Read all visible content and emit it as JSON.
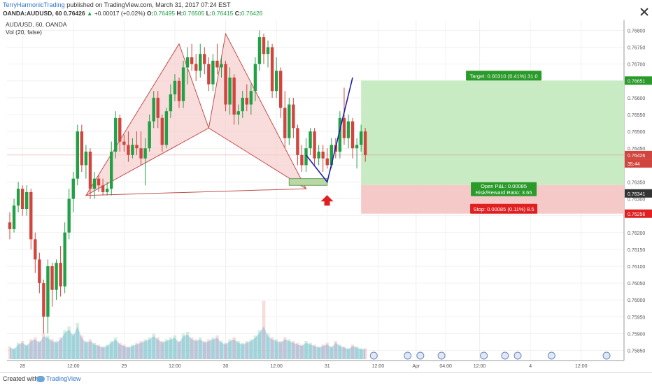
{
  "header": {
    "author": "TerryHarmonicTrading",
    "published": " published on TradingView.com, March 31, 2017 07:24 EST",
    "symbol": "OANDA:AUDUSD, 60",
    "last": "0.76426",
    "change": "+0.00017 (+0.02%)",
    "o_label": "O:",
    "o": "0.76495",
    "h_label": "H:",
    "h": "0.76505",
    "l_label": "L:",
    "l": "0.76415",
    "c_label": "C:",
    "c": "0.76426"
  },
  "legend": {
    "line1": "AUD/USD, 60, OANDA",
    "line2": "Vol (20, false)"
  },
  "footer": {
    "created": "Created with",
    "brand": "TradingView"
  },
  "chart_data": {
    "type": "candlestick",
    "ylim": [
      0.7582,
      0.7683
    ],
    "y_ticks": [
      0.7585,
      0.759,
      0.7595,
      0.76,
      0.7605,
      0.761,
      0.7615,
      0.762,
      0.7625,
      0.763,
      0.7635,
      0.764,
      0.7645,
      0.765,
      0.7655,
      0.766,
      0.7665,
      0.767,
      0.7675,
      0.768
    ],
    "y_tick_labels": [
      "0.75850",
      "0.75900",
      "0.75950",
      "0.76000",
      "0.76050",
      "0.76100",
      "0.76150",
      "0.76200",
      "0.76250",
      "0.76300",
      "0.76350",
      "0.76400",
      "0.76450",
      "0.76500",
      "0.76550",
      "0.76600",
      "0.76650",
      "0.76700",
      "0.76750",
      "0.76800"
    ],
    "x_ticks": [
      {
        "label": "28",
        "i": 3
      },
      {
        "label": "12:00",
        "i": 15
      },
      {
        "label": "29",
        "i": 27
      },
      {
        "label": "12:00",
        "i": 39
      },
      {
        "label": "30",
        "i": 51
      },
      {
        "label": "12:00",
        "i": 63
      },
      {
        "label": "31",
        "i": 75
      },
      {
        "label": "12:00",
        "i": 87
      },
      {
        "label": "Apr",
        "i": 96
      },
      {
        "label": "04:00",
        "i": 103
      },
      {
        "label": "12:00",
        "i": 111
      },
      {
        "label": "4",
        "i": 123
      },
      {
        "label": "12:00",
        "i": 135
      }
    ],
    "candles": [
      [
        0.7623,
        0.7626,
        0.7618,
        0.7621
      ],
      [
        0.7621,
        0.763,
        0.762,
        0.7628
      ],
      [
        0.7628,
        0.7635,
        0.7626,
        0.7633
      ],
      [
        0.7633,
        0.7634,
        0.7625,
        0.7627
      ],
      [
        0.7627,
        0.7634,
        0.7625,
        0.7632
      ],
      [
        0.7632,
        0.7633,
        0.7615,
        0.7618
      ],
      [
        0.7618,
        0.762,
        0.7608,
        0.7612
      ],
      [
        0.7612,
        0.7614,
        0.7602,
        0.7605
      ],
      [
        0.7605,
        0.7606,
        0.759,
        0.7595
      ],
      [
        0.7595,
        0.7612,
        0.759,
        0.761
      ],
      [
        0.761,
        0.7611,
        0.7598,
        0.7603
      ],
      [
        0.7603,
        0.7612,
        0.76,
        0.7611
      ],
      [
        0.7611,
        0.7616,
        0.7601,
        0.7604
      ],
      [
        0.7604,
        0.7623,
        0.7602,
        0.762
      ],
      [
        0.762,
        0.7633,
        0.7618,
        0.763
      ],
      [
        0.763,
        0.7638,
        0.7626,
        0.7636
      ],
      [
        0.7636,
        0.7652,
        0.7634,
        0.765
      ],
      [
        0.765,
        0.7652,
        0.7638,
        0.764
      ],
      [
        0.764,
        0.7646,
        0.7636,
        0.7644
      ],
      [
        0.7644,
        0.7645,
        0.763,
        0.7633
      ],
      [
        0.7633,
        0.7638,
        0.763,
        0.7636
      ],
      [
        0.7636,
        0.7637,
        0.7632,
        0.7634
      ],
      [
        0.7634,
        0.7636,
        0.7631,
        0.7632
      ],
      [
        0.7632,
        0.7635,
        0.7631,
        0.7633
      ],
      [
        0.7633,
        0.7647,
        0.7631,
        0.7644
      ],
      [
        0.7644,
        0.7656,
        0.7642,
        0.7654
      ],
      [
        0.7654,
        0.7655,
        0.7644,
        0.7647
      ],
      [
        0.7647,
        0.7649,
        0.7644,
        0.7646
      ],
      [
        0.7646,
        0.765,
        0.7641,
        0.7643
      ],
      [
        0.7643,
        0.7648,
        0.7642,
        0.7646
      ],
      [
        0.7646,
        0.765,
        0.7643,
        0.7645
      ],
      [
        0.7645,
        0.765,
        0.764,
        0.7642
      ],
      [
        0.7642,
        0.7648,
        0.7634,
        0.7645
      ],
      [
        0.7645,
        0.7655,
        0.7644,
        0.7653
      ],
      [
        0.7653,
        0.7662,
        0.7651,
        0.766
      ],
      [
        0.766,
        0.7662,
        0.7651,
        0.7654
      ],
      [
        0.7654,
        0.7655,
        0.7644,
        0.7646
      ],
      [
        0.7646,
        0.7657,
        0.7645,
        0.7656
      ],
      [
        0.7656,
        0.7664,
        0.7654,
        0.7661
      ],
      [
        0.7661,
        0.7667,
        0.7659,
        0.7665
      ],
      [
        0.7665,
        0.7666,
        0.7657,
        0.7659
      ],
      [
        0.7659,
        0.7671,
        0.7657,
        0.7669
      ],
      [
        0.7669,
        0.7675,
        0.7664,
        0.7672
      ],
      [
        0.7672,
        0.7676,
        0.7668,
        0.767
      ],
      [
        0.767,
        0.7673,
        0.7665,
        0.7668
      ],
      [
        0.7668,
        0.7676,
        0.7666,
        0.7673
      ],
      [
        0.7673,
        0.7675,
        0.7667,
        0.767
      ],
      [
        0.767,
        0.7672,
        0.7662,
        0.7664
      ],
      [
        0.7664,
        0.7673,
        0.7662,
        0.7671
      ],
      [
        0.7671,
        0.7676,
        0.7667,
        0.7669
      ],
      [
        0.7669,
        0.7672,
        0.7666,
        0.767
      ],
      [
        0.767,
        0.7671,
        0.7656,
        0.7658
      ],
      [
        0.7658,
        0.7669,
        0.7655,
        0.7666
      ],
      [
        0.7666,
        0.7667,
        0.7652,
        0.7655
      ],
      [
        0.7655,
        0.7658,
        0.7652,
        0.7656
      ],
      [
        0.7656,
        0.7662,
        0.7654,
        0.766
      ],
      [
        0.766,
        0.7664,
        0.7656,
        0.7658
      ],
      [
        0.7658,
        0.7664,
        0.7655,
        0.7662
      ],
      [
        0.7662,
        0.7672,
        0.7659,
        0.767
      ],
      [
        0.767,
        0.768,
        0.7668,
        0.7678
      ],
      [
        0.7678,
        0.7679,
        0.767,
        0.7673
      ],
      [
        0.7673,
        0.7677,
        0.7669,
        0.7675
      ],
      [
        0.7675,
        0.7676,
        0.766,
        0.7662
      ],
      [
        0.7662,
        0.7672,
        0.766,
        0.7668
      ],
      [
        0.7668,
        0.7669,
        0.7654,
        0.7657
      ],
      [
        0.7657,
        0.7662,
        0.7645,
        0.7648
      ],
      [
        0.7648,
        0.766,
        0.7646,
        0.7658
      ],
      [
        0.7658,
        0.766,
        0.7648,
        0.7651
      ],
      [
        0.7651,
        0.7652,
        0.764,
        0.7643
      ],
      [
        0.7643,
        0.7646,
        0.7638,
        0.764
      ],
      [
        0.764,
        0.7648,
        0.7638,
        0.7645
      ],
      [
        0.7645,
        0.7651,
        0.7643,
        0.765
      ],
      [
        0.765,
        0.7651,
        0.764,
        0.7642
      ],
      [
        0.7642,
        0.7646,
        0.764,
        0.7644
      ],
      [
        0.7644,
        0.7646,
        0.7638,
        0.7642
      ],
      [
        0.7642,
        0.7645,
        0.7639,
        0.764
      ],
      [
        0.764,
        0.7648,
        0.7639,
        0.7646
      ],
      [
        0.7646,
        0.7648,
        0.7642,
        0.7644
      ],
      [
        0.7644,
        0.7656,
        0.7642,
        0.7654
      ],
      [
        0.7654,
        0.7663,
        0.7646,
        0.7648
      ],
      [
        0.7648,
        0.7655,
        0.7645,
        0.7653
      ],
      [
        0.7653,
        0.7654,
        0.7642,
        0.7645
      ],
      [
        0.7645,
        0.7648,
        0.7639,
        0.7646
      ],
      [
        0.7646,
        0.7652,
        0.7644,
        0.765
      ],
      [
        0.765,
        0.7651,
        0.7641,
        0.7643
      ]
    ],
    "volume_relative": [
      0.35,
      0.3,
      0.45,
      0.5,
      0.4,
      0.55,
      0.6,
      0.5,
      0.7,
      0.65,
      0.55,
      0.5,
      0.6,
      0.8,
      0.9,
      0.7,
      1.0,
      0.65,
      0.5,
      0.55,
      0.45,
      0.4,
      0.35,
      0.4,
      0.5,
      0.6,
      0.45,
      0.4,
      0.35,
      0.4,
      0.45,
      0.5,
      0.55,
      0.6,
      0.7,
      0.6,
      0.5,
      0.55,
      0.6,
      0.65,
      0.5,
      0.7,
      0.75,
      0.6,
      0.55,
      0.6,
      0.5,
      0.55,
      0.6,
      0.65,
      0.5,
      0.45,
      0.55,
      0.6,
      0.5,
      0.45,
      0.5,
      0.55,
      0.65,
      0.8,
      1.6,
      0.7,
      0.6,
      0.55,
      0.5,
      0.6,
      0.55,
      0.5,
      0.45,
      0.4,
      0.5,
      0.45,
      0.4,
      0.35,
      0.4,
      0.45,
      0.35,
      0.5,
      0.4,
      0.35,
      0.3,
      0.4,
      0.35,
      0.3,
      0.3
    ],
    "pattern": {
      "points": [
        [
          18,
          0.7631
        ],
        [
          40,
          0.7676
        ],
        [
          47,
          0.7651
        ],
        [
          51,
          0.7679
        ],
        [
          70,
          0.7633
        ]
      ],
      "projection": [
        [
          70,
          0.7643
        ],
        [
          75,
          0.7635
        ],
        [
          81,
          0.7666
        ]
      ]
    },
    "zone": {
      "i_start": 66,
      "i_end": 75,
      "top": 0.7636,
      "bottom": 0.7634
    },
    "position": {
      "entry": 0.76341,
      "target_price": 0.76651,
      "stop_price": 0.76256,
      "i_start": 83,
      "target_label": "Target: 0.00310 (0.41%) 31.0",
      "stop_label": "Stop: 0.00085 (0.11%) 8.5",
      "pnl_label": "Open P&L: 0.00085",
      "rr_label": "Risk/Reward Ratio: 3.65"
    },
    "price_labels": {
      "current": "0.76426",
      "countdown": "35:44",
      "target": "0.76651",
      "entry": "0.76341",
      "stop": "0.76256"
    },
    "colors": {
      "up": "#22a046",
      "down": "#d0453e",
      "pattern_fill": "#f6c9c9",
      "pattern_line": "#c0504d",
      "projection": "#1f1fb0",
      "target_zone": "#c9ebc4",
      "stop_zone": "#f6c9c9",
      "arrow": "#e02020"
    }
  }
}
